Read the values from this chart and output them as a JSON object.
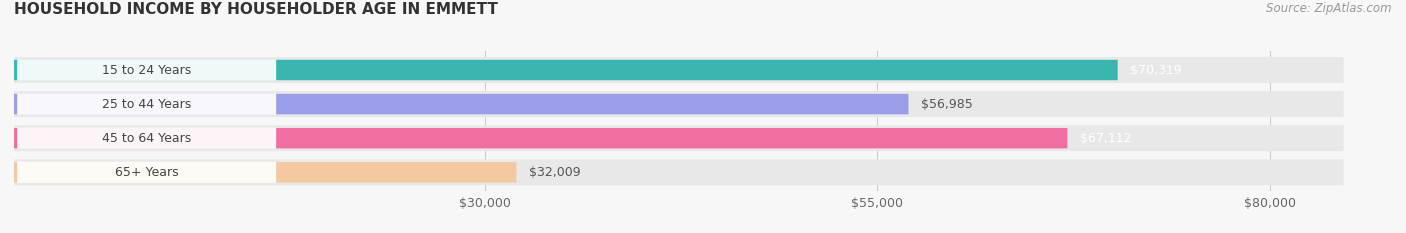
{
  "title": "HOUSEHOLD INCOME BY HOUSEHOLDER AGE IN EMMETT",
  "source": "Source: ZipAtlas.com",
  "categories": [
    "15 to 24 Years",
    "25 to 44 Years",
    "45 to 64 Years",
    "65+ Years"
  ],
  "values": [
    70319,
    56985,
    67112,
    32009
  ],
  "bar_colors": [
    "#3ab5b0",
    "#9b9de8",
    "#f06fa0",
    "#f5c9a0"
  ],
  "value_labels": [
    "$70,319",
    "$56,985",
    "$67,112",
    "$32,009"
  ],
  "value_label_colors": [
    "white",
    "#555555",
    "white",
    "#555555"
  ],
  "x_ticks": [
    30000,
    55000,
    80000
  ],
  "x_tick_labels": [
    "$30,000",
    "$55,000",
    "$80,000"
  ],
  "xlim_max": 86000,
  "background_color": "#f7f7f7",
  "bar_bg_color": "#e8e8e8",
  "title_fontsize": 11,
  "label_fontsize": 9,
  "tick_fontsize": 9,
  "source_fontsize": 8.5
}
